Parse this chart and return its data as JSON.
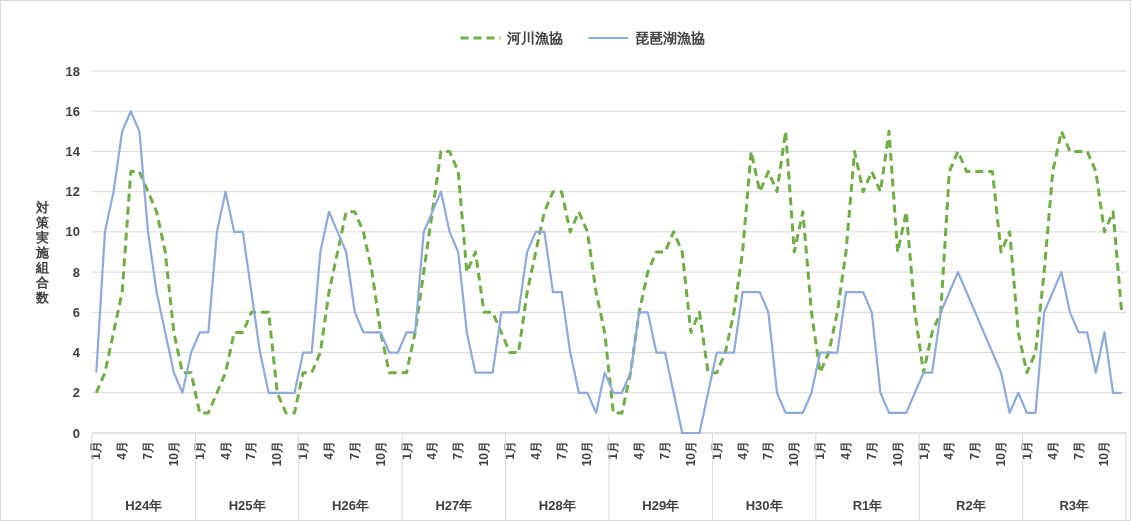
{
  "chart_data": {
    "type": "line",
    "ylabel": "対策実施組合数",
    "categories": [
      "1月",
      null,
      null,
      "4月",
      null,
      null,
      "7月",
      null,
      null,
      "10月",
      null,
      null,
      "1月",
      null,
      null,
      "4月",
      null,
      null,
      "7月",
      null,
      null,
      "10月",
      null,
      null,
      "1月",
      null,
      null,
      "4月",
      null,
      null,
      "7月",
      null,
      null,
      "10月",
      null,
      null,
      "1月",
      null,
      null,
      "4月",
      null,
      null,
      "7月",
      null,
      null,
      "10月",
      null,
      null,
      "1月",
      null,
      null,
      "4月",
      null,
      null,
      "7月",
      null,
      null,
      "10月",
      null,
      null,
      "1月",
      null,
      null,
      "4月",
      null,
      null,
      "7月",
      null,
      null,
      "10月",
      null,
      null,
      "1月",
      null,
      null,
      "4月",
      null,
      null,
      "7月",
      null,
      null,
      "10月",
      null,
      null,
      "1月",
      null,
      null,
      "4月",
      null,
      null,
      "7月",
      null,
      null,
      "10月",
      null,
      null,
      "1月",
      null,
      null,
      "4月",
      null,
      null,
      "7月",
      null,
      null,
      "10月",
      null,
      null,
      "1月",
      null,
      null,
      "4月",
      null,
      null,
      "7月",
      null,
      null,
      "10月",
      null,
      null
    ],
    "series": [
      {
        "name": "河川漁協",
        "color": "#70ad47",
        "line_style": "dashed",
        "values": [
          2,
          3,
          5,
          7,
          13,
          13,
          12,
          11,
          9,
          5,
          3,
          3,
          1,
          1,
          2,
          3,
          5,
          5,
          6,
          6,
          6,
          2,
          1,
          1,
          3,
          3,
          4,
          7,
          9,
          11,
          11,
          10,
          8,
          5,
          3,
          3,
          3,
          5,
          8,
          11,
          14,
          14,
          13,
          8,
          9,
          6,
          6,
          5,
          4,
          4,
          7,
          9,
          11,
          12,
          12,
          10,
          11,
          10,
          7,
          5,
          1,
          1,
          3,
          6,
          8,
          9,
          9,
          10,
          9,
          5,
          6,
          3,
          3,
          4,
          6,
          9,
          14,
          12,
          13,
          12,
          15,
          9,
          11,
          6,
          3,
          4,
          6,
          9,
          14,
          12,
          13,
          12,
          15,
          9,
          11,
          6,
          3,
          5,
          6,
          13,
          14,
          13,
          13,
          13,
          13,
          9,
          10,
          5,
          3,
          4,
          8,
          13,
          15,
          14,
          14,
          14,
          13,
          10,
          11,
          6
        ]
      },
      {
        "name": "琵琶湖漁協",
        "color": "#8eaadb",
        "line_style": "solid",
        "values": [
          3,
          10,
          12,
          15,
          16,
          15,
          10,
          7,
          5,
          3,
          2,
          4,
          5,
          5,
          10,
          12,
          10,
          10,
          7,
          4,
          2,
          2,
          2,
          2,
          4,
          4,
          9,
          11,
          10,
          9,
          6,
          5,
          5,
          5,
          4,
          4,
          5,
          5,
          10,
          11,
          12,
          10,
          9,
          5,
          3,
          3,
          3,
          6,
          6,
          6,
          9,
          10,
          10,
          7,
          7,
          4,
          2,
          2,
          1,
          3,
          2,
          2,
          3,
          6,
          6,
          4,
          4,
          2,
          0,
          0,
          0,
          2,
          4,
          4,
          4,
          7,
          7,
          7,
          6,
          2,
          1,
          1,
          1,
          2,
          4,
          4,
          4,
          7,
          7,
          7,
          6,
          2,
          1,
          1,
          1,
          2,
          3,
          3,
          6,
          7,
          8,
          7,
          6,
          5,
          4,
          3,
          1,
          2,
          1,
          1,
          6,
          7,
          8,
          6,
          5,
          5,
          3,
          5,
          2,
          2
        ]
      }
    ],
    "ylim": [
      0,
      18
    ],
    "yticks": [
      0,
      2,
      4,
      6,
      8,
      10,
      12,
      14,
      16,
      18
    ],
    "grid": "y",
    "legend": "top",
    "marker": "none",
    "annotations": [
      "H24年",
      "H25年",
      "H26年",
      "H27年",
      "H28年",
      "H29年",
      "H30年",
      "R1年",
      "R2年",
      "R3年"
    ]
  }
}
